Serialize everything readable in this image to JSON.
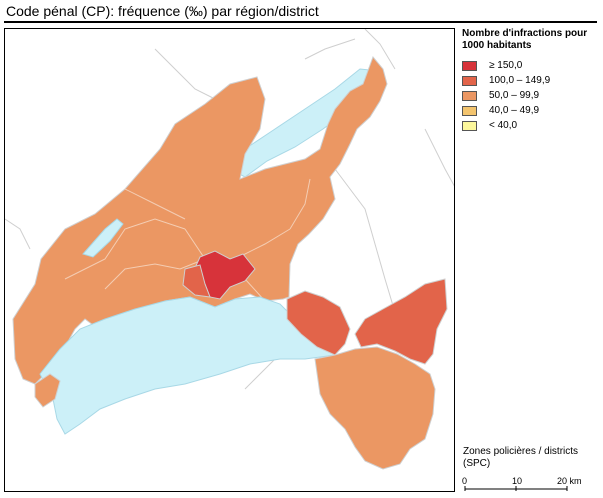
{
  "title": "Code pénal (CP): fréquence (‰) par région/district",
  "legend": {
    "title": "Nombre d'infractions pour 1000 habitants",
    "items": [
      {
        "label": "≥ 150,0",
        "color": "#d7333a"
      },
      {
        "label": "100,0 – 149,9",
        "color": "#e2644a"
      },
      {
        "label": "50,0 – 99,9",
        "color": "#eb9763"
      },
      {
        "label": "40,0 – 49,9",
        "color": "#f3c46e"
      },
      {
        "label": "< 40,0",
        "color": "#fdf89c"
      }
    ]
  },
  "source": "Zones policières / districts (SPC)",
  "scale": {
    "ticks": [
      "0",
      "10",
      "20 km"
    ]
  },
  "colors": {
    "lake": "#ccf0f8",
    "border": "#cfcfcf",
    "background": "#ffffff"
  }
}
